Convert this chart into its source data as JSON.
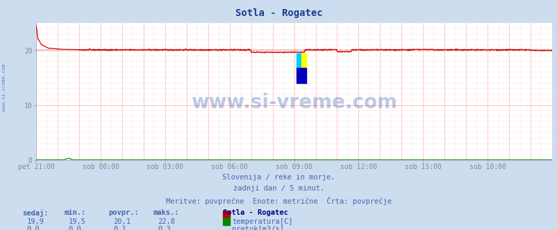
{
  "title": "Sotla - Rogatec",
  "title_color": "#1a3a8a",
  "bg_color": "#ccddf0",
  "plot_bg_color": "#ffffff",
  "grid_color_major": "#ffaaaa",
  "grid_color_minor": "#ffdddd",
  "xlabel_ticks": [
    "pet 21:00",
    "sob 00:00",
    "sob 03:00",
    "sob 06:00",
    "sob 09:00",
    "sob 12:00",
    "sob 15:00",
    "sob 18:00"
  ],
  "tick_positions": [
    0,
    180,
    360,
    540,
    720,
    900,
    1080,
    1260
  ],
  "total_points": 1441,
  "ylim": [
    0,
    25
  ],
  "yticks": [
    0,
    10,
    20
  ],
  "temp_avg": 20.1,
  "temp_line_color": "#cc0000",
  "flow_line_color": "#008800",
  "watermark": "www.si-vreme.com",
  "watermark_color": "#2255aa",
  "left_label": "www.si-vreme.com",
  "footer_line1": "Slovenija / reke in morje.",
  "footer_line2": "zadnji dan / 5 minut.",
  "footer_line3": "Meritve: povprečne  Enote: metrične  Črta: povprečje",
  "footer_color": "#4466aa",
  "legend_title": "Sotla - Rogatec",
  "legend_color": "#000080",
  "table_headers": [
    "sedaj:",
    "min.:",
    "povpr.:",
    "maks.:"
  ],
  "table_row1": [
    "19,9",
    "19,5",
    "20,1",
    "22,8"
  ],
  "table_row2": [
    "0,0",
    "0,0",
    "0,1",
    "0,3"
  ],
  "table_color": "#4466aa",
  "header_color": "#4466aa"
}
